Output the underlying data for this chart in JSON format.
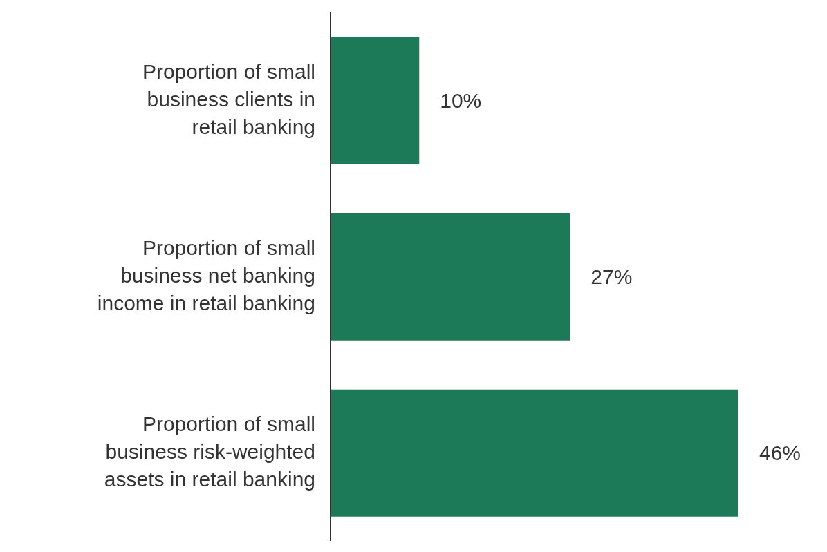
{
  "chart_data": {
    "type": "bar",
    "orientation": "horizontal",
    "categories": [
      "Proportion of small business clients in retail banking",
      "Proportion of small business net banking income in retail banking",
      "Proportion of small business risk-weighted assets in retail banking"
    ],
    "values": [
      10,
      27,
      46
    ],
    "color": "#1c7a58",
    "data_labels": true,
    "value_labels": [
      "10%",
      "27%",
      "46%"
    ],
    "grid": false
  }
}
